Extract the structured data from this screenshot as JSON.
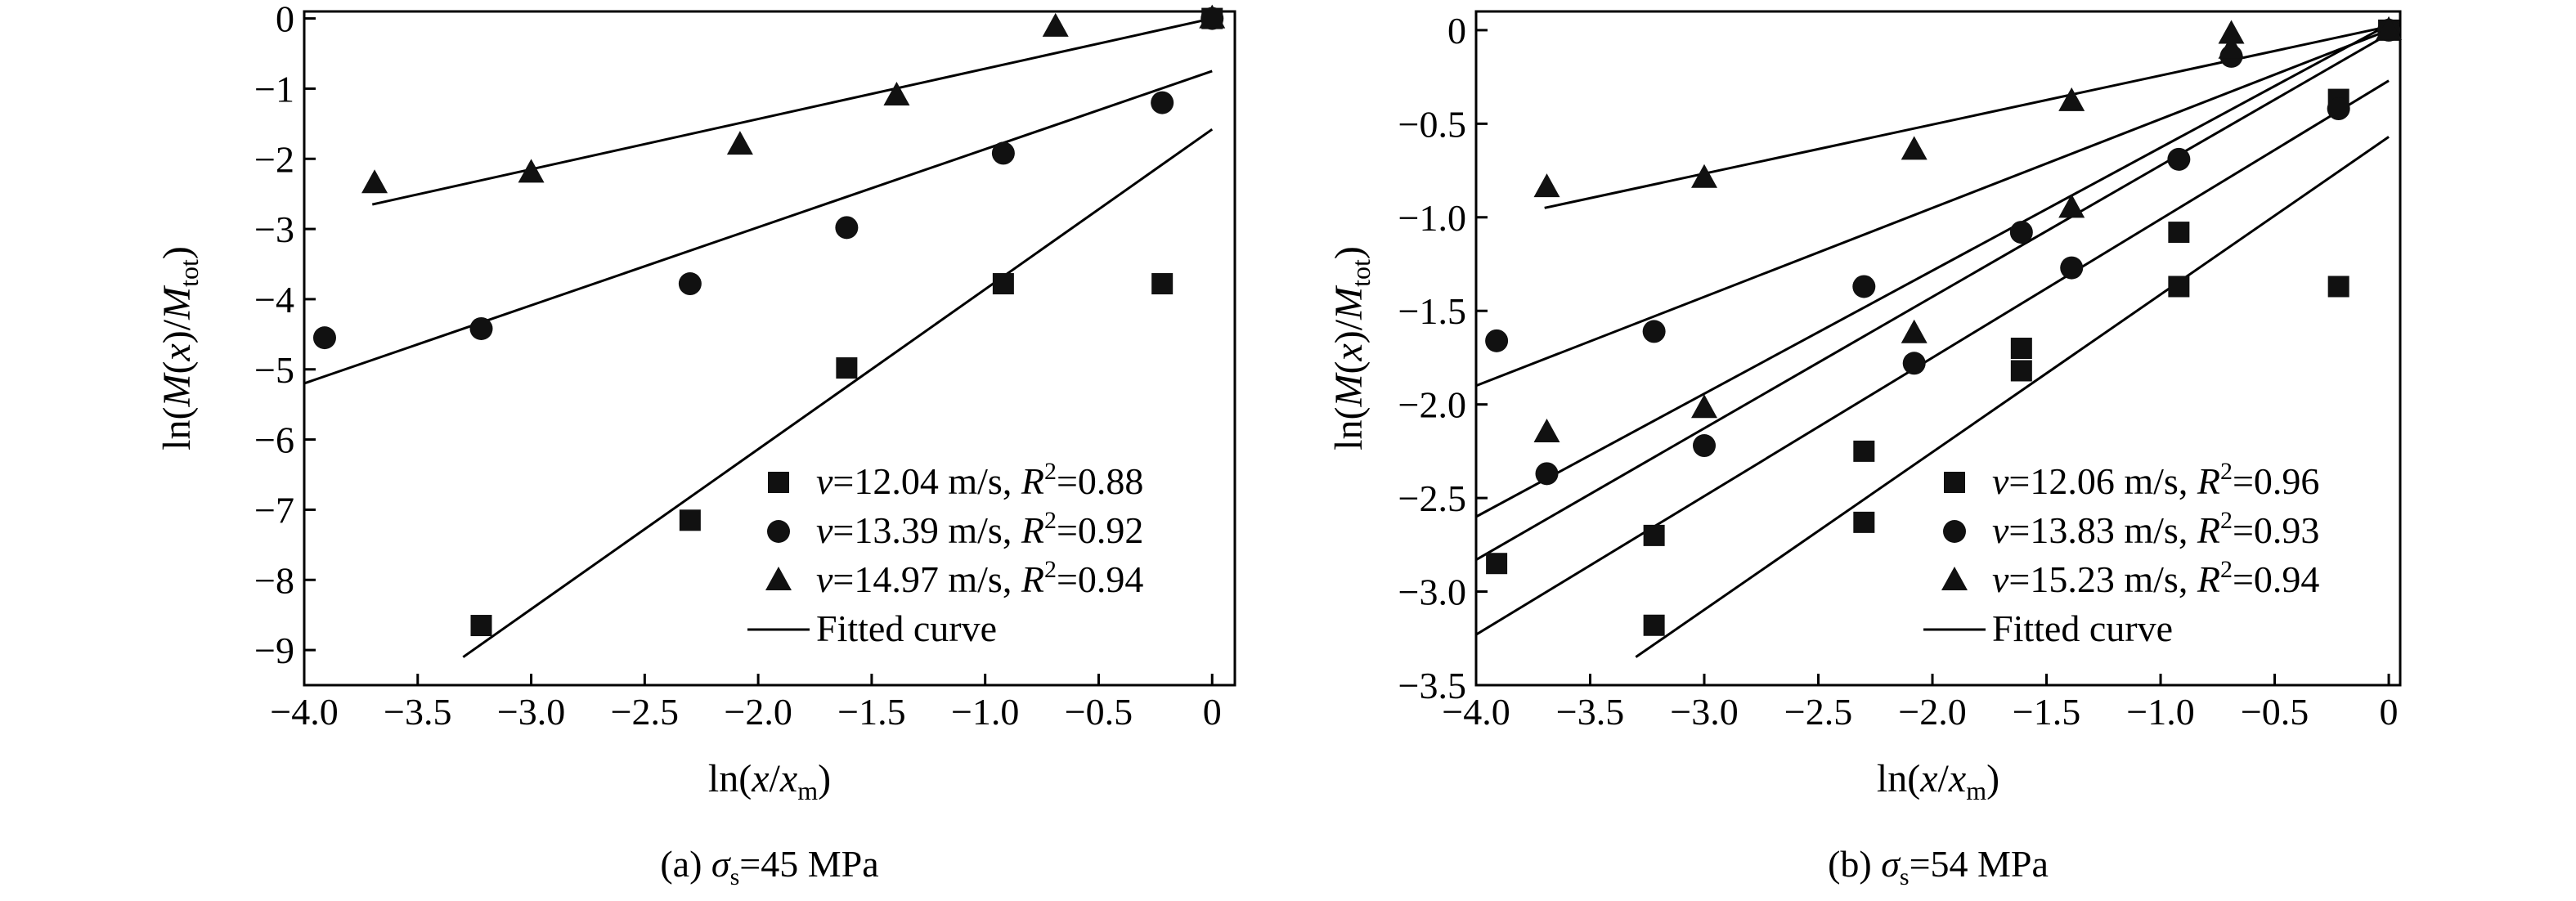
{
  "chart_data": [
    {
      "type": "scatter",
      "caption": "(a) σs=45 MPa",
      "caption_parts": {
        "prefix": "(a) ",
        "symbol": "σ",
        "sub": "s",
        "suffix": "=45 MPa"
      },
      "xlabel": "ln(x/xm)",
      "ylabel": "ln(M(x)/Mtot)",
      "xlim": [
        -4.0,
        0.1
      ],
      "ylim": [
        -9.5,
        0.1
      ],
      "xticks": [
        -4.0,
        -3.5,
        -3.0,
        -2.5,
        -2.0,
        -1.5,
        -1.0,
        -0.5,
        0
      ],
      "xtick_labels": [
        "−4.0",
        "−3.5",
        "−3.0",
        "−2.5",
        "−2.0",
        "−1.5",
        "−1.0",
        "−0.5",
        "0"
      ],
      "yticks": [
        0,
        -1,
        -2,
        -3,
        -4,
        -5,
        -6,
        -7,
        -8,
        -9
      ],
      "ytick_labels": [
        "0",
        "−1",
        "−2",
        "−3",
        "−4",
        "−5",
        "−6",
        "−7",
        "−8",
        "−9"
      ],
      "grid": false,
      "legend_position": "bottom-right",
      "series": [
        {
          "marker": "square",
          "legend": {
            "v": "12.04",
            "r2": "0.88"
          },
          "points": [
            [
              -3.22,
              -8.65
            ],
            [
              -2.3,
              -7.15
            ],
            [
              -1.61,
              -4.98
            ],
            [
              -0.92,
              -3.78
            ],
            [
              -0.22,
              -3.78
            ],
            [
              0.0,
              0.0
            ]
          ],
          "fit": {
            "x": [
              -3.3,
              0.0
            ],
            "y": [
              -9.1,
              -1.58
            ]
          }
        },
        {
          "marker": "circle",
          "legend": {
            "v": "13.39",
            "r2": "0.92"
          },
          "points": [
            [
              -3.91,
              -4.55
            ],
            [
              -3.22,
              -4.42
            ],
            [
              -2.3,
              -3.78
            ],
            [
              -1.61,
              -2.98
            ],
            [
              -0.92,
              -1.92
            ],
            [
              -0.22,
              -1.2
            ],
            [
              0.0,
              0.0
            ]
          ],
          "fit": {
            "x": [
              -4.0,
              0.0
            ],
            "y": [
              -5.2,
              -0.75
            ]
          }
        },
        {
          "marker": "triangle",
          "legend": {
            "v": "14.97",
            "r2": "0.94"
          },
          "points": [
            [
              -3.69,
              -2.35
            ],
            [
              -3.0,
              -2.2
            ],
            [
              -2.08,
              -1.8
            ],
            [
              -1.39,
              -1.1
            ],
            [
              -0.69,
              -0.12
            ],
            [
              0.0,
              0.0
            ]
          ],
          "fit": {
            "x": [
              -3.7,
              0.0
            ],
            "y": [
              -2.65,
              0.0
            ]
          }
        }
      ],
      "fit_legend": "Fitted curve"
    },
    {
      "type": "scatter",
      "caption": "(b) σs=54 MPa",
      "caption_parts": {
        "prefix": "(b) ",
        "symbol": "σ",
        "sub": "s",
        "suffix": "=54 MPa"
      },
      "xlabel": "ln(x/xm)",
      "ylabel": "ln(M(x)/Mtot)",
      "xlim": [
        -4.0,
        0.05
      ],
      "ylim": [
        -3.5,
        0.1
      ],
      "xticks": [
        -4.0,
        -3.5,
        -3.0,
        -2.5,
        -2.0,
        -1.5,
        -1.0,
        -0.5,
        0
      ],
      "xtick_labels": [
        "−4.0",
        "−3.5",
        "−3.0",
        "−2.5",
        "−2.0",
        "−1.5",
        "−1.0",
        "−0.5",
        "0"
      ],
      "yticks": [
        0,
        -0.5,
        -1.0,
        -1.5,
        -2.0,
        -2.5,
        -3.0,
        -3.5
      ],
      "ytick_labels": [
        "0",
        "−0.5",
        "−1.0",
        "−1.5",
        "−2.0",
        "−2.5",
        "−3.0",
        "−3.5"
      ],
      "grid": false,
      "legend_position": "bottom-right",
      "series": [
        {
          "marker": "square",
          "legend": {
            "v": "12.06",
            "r2": "0.96"
          },
          "points": [
            [
              -3.91,
              -2.85
            ],
            [
              -3.22,
              -2.7
            ],
            [
              -3.22,
              -3.18
            ],
            [
              -2.3,
              -2.25
            ],
            [
              -2.3,
              -2.63
            ],
            [
              -1.61,
              -1.7
            ],
            [
              -1.61,
              -1.82
            ],
            [
              -0.92,
              -1.08
            ],
            [
              -0.92,
              -1.37
            ],
            [
              -0.22,
              -0.37
            ],
            [
              -0.22,
              -1.37
            ],
            [
              0.0,
              0.0
            ]
          ],
          "fit": {
            "x": [
              [
                -3.3,
                0.0
              ],
              [
                -4.0,
                0.0
              ]
            ],
            "y": [
              [
                -3.35,
                -0.57
              ],
              [
                -3.23,
                -0.27
              ]
            ]
          }
        },
        {
          "marker": "circle",
          "legend": {
            "v": "13.83",
            "r2": "0.93"
          },
          "points": [
            [
              -3.91,
              -1.66
            ],
            [
              -3.69,
              -2.37
            ],
            [
              -3.22,
              -1.61
            ],
            [
              -3.0,
              -2.22
            ],
            [
              -2.3,
              -1.37
            ],
            [
              -2.08,
              -1.78
            ],
            [
              -1.61,
              -1.08
            ],
            [
              -1.39,
              -1.27
            ],
            [
              -0.92,
              -0.69
            ],
            [
              -0.69,
              -0.14
            ],
            [
              -0.22,
              -0.42
            ],
            [
              0.0,
              0.0
            ]
          ],
          "fit": {
            "x": [
              [
                -4.0,
                0.0
              ],
              [
                -4.0,
                0.0
              ]
            ],
            "y": [
              [
                -1.9,
                0.0
              ],
              [
                -2.83,
                -0.02
              ]
            ]
          }
        },
        {
          "marker": "triangle",
          "legend": {
            "v": "15.23",
            "r2": "0.94"
          },
          "points": [
            [
              -3.69,
              -0.84
            ],
            [
              -3.69,
              -2.15
            ],
            [
              -3.0,
              -0.79
            ],
            [
              -3.0,
              -2.02
            ],
            [
              -2.08,
              -0.64
            ],
            [
              -2.08,
              -1.62
            ],
            [
              -1.39,
              -0.38
            ],
            [
              -1.39,
              -0.95
            ],
            [
              -0.69,
              -0.02
            ],
            [
              -0.69,
              -0.1
            ],
            [
              0.0,
              0.0
            ]
          ],
          "fit": {
            "x": [
              [
                -3.7,
                0.0
              ],
              [
                -4.0,
                0.0
              ]
            ],
            "y": [
              [
                -0.95,
                0.02
              ],
              [
                -2.6,
                0.03
              ]
            ]
          }
        }
      ],
      "fit_legend": "Fitted curve"
    }
  ]
}
